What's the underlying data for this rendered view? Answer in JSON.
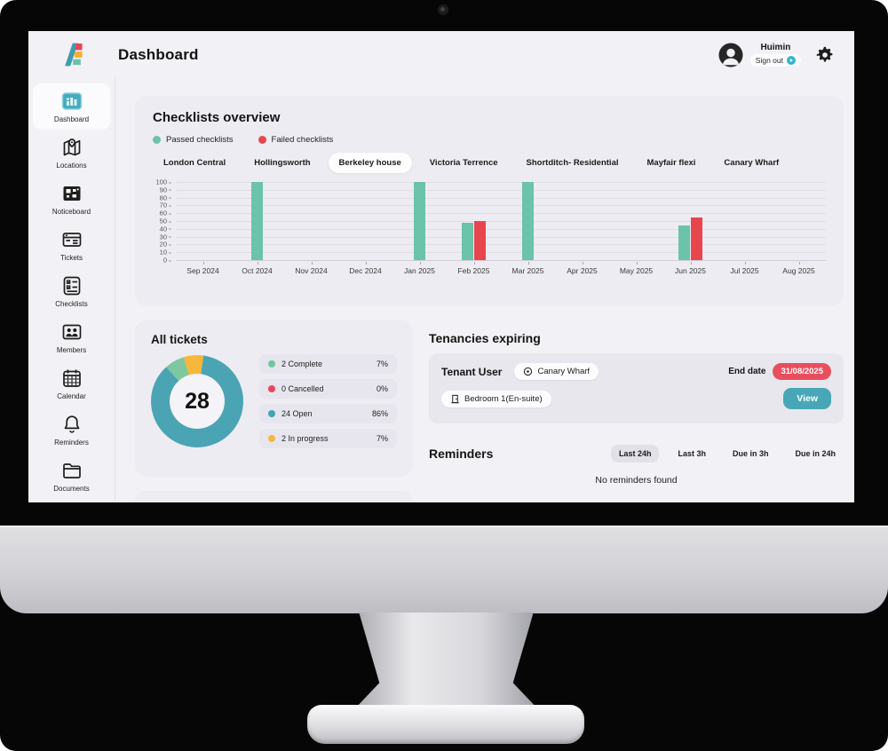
{
  "header": {
    "title": "Dashboard",
    "user_name": "Huimin",
    "sign_out_label": "Sign out"
  },
  "sidebar": {
    "items": [
      {
        "label": "Dashboard",
        "icon": "dashboard-icon",
        "active": true
      },
      {
        "label": "Locations",
        "icon": "locations-icon",
        "active": false
      },
      {
        "label": "Noticeboard",
        "icon": "noticeboard-icon",
        "active": false
      },
      {
        "label": "Tickets",
        "icon": "tickets-icon",
        "active": false
      },
      {
        "label": "Checklists",
        "icon": "checklists-icon",
        "active": false
      },
      {
        "label": "Members",
        "icon": "members-icon",
        "active": false
      },
      {
        "label": "Calendar",
        "icon": "calendar-icon",
        "active": false
      },
      {
        "label": "Reminders",
        "icon": "reminders-icon",
        "active": false
      },
      {
        "label": "Documents",
        "icon": "documents-icon",
        "active": false
      }
    ]
  },
  "checklists": {
    "title": "Checklists overview",
    "legend": [
      {
        "label": "Passed checklists",
        "color": "#6bc3a9"
      },
      {
        "label": "Failed checklists",
        "color": "#e8464f"
      }
    ],
    "tabs": [
      {
        "label": "London Central",
        "active": false
      },
      {
        "label": "Hollingsworth",
        "active": false
      },
      {
        "label": "Berkeley house",
        "active": true
      },
      {
        "label": "Victoria Terrence",
        "active": false
      },
      {
        "label": "Shortditch- Residential",
        "active": false
      },
      {
        "label": "Mayfair flexi",
        "active": false
      },
      {
        "label": "Canary Wharf",
        "active": false
      }
    ]
  },
  "chart_data": [
    {
      "type": "bar",
      "title": "Checklists overview",
      "categories": [
        "Sep 2024",
        "Oct 2024",
        "Nov 2024",
        "Dec 2024",
        "Jan 2025",
        "Feb 2025",
        "Mar 2025",
        "Apr 2025",
        "May 2025",
        "Jun 2025",
        "Jul 2025",
        "Aug 2025"
      ],
      "series": [
        {
          "name": "Passed checklists",
          "color": "#6bc3a9",
          "values": [
            0,
            100,
            0,
            0,
            100,
            48,
            100,
            0,
            0,
            44,
            0,
            0
          ]
        },
        {
          "name": "Failed checklists",
          "color": "#e8464f",
          "values": [
            0,
            0,
            0,
            0,
            0,
            50,
            0,
            0,
            0,
            54,
            0,
            0
          ]
        }
      ],
      "ylim": [
        0,
        100
      ],
      "yticks": [
        100,
        90,
        80,
        70,
        60,
        50,
        40,
        30,
        20,
        10,
        0
      ],
      "grid": true,
      "legend_position": "top"
    },
    {
      "type": "pie",
      "title": "All tickets",
      "center_label": "28",
      "slices": [
        {
          "label": "Open",
          "value": 86,
          "color": "#4aa4b4"
        },
        {
          "label": "Complete",
          "value": 7,
          "color": "#7dc8a0"
        },
        {
          "label": "In progress",
          "value": 7,
          "color": "#f6b73c"
        },
        {
          "label": "Cancelled",
          "value": 0,
          "color": "#e8475a"
        }
      ]
    }
  ],
  "tickets": {
    "title": "All tickets",
    "total": "28",
    "legend": [
      {
        "label": "2 Complete",
        "pct": "7%",
        "color": "#6fc7a1"
      },
      {
        "label": "0 Cancelled",
        "pct": "0%",
        "color": "#e8475a"
      },
      {
        "label": "24 Open",
        "pct": "86%",
        "color": "#44a3b3"
      },
      {
        "label": "2 In progress",
        "pct": "7%",
        "color": "#f6b73c"
      }
    ]
  },
  "tenancies": {
    "title": "Tenancies expiring",
    "tenant_name": "Tenant User",
    "location": "Canary Wharf",
    "end_date_label": "End date",
    "end_date": "31/08/2025",
    "room": "Bedroom 1(En-suite)",
    "view_label": "View"
  },
  "reminders": {
    "title": "Reminders",
    "filters": [
      {
        "label": "Last 24h",
        "active": true
      },
      {
        "label": "Last 3h",
        "active": false
      },
      {
        "label": "Due in 3h",
        "active": false
      },
      {
        "label": "Due in 24h",
        "active": false
      }
    ],
    "empty_message": "No reminders found"
  },
  "colors": {
    "accent_teal": "#48a7b6",
    "accent_red": "#e84f5e",
    "passed": "#6bc3a9",
    "failed": "#e8464f",
    "in_progress": "#f6b73c",
    "screen_bg": "#f2f1f5",
    "card_bg": "#edecf2"
  }
}
